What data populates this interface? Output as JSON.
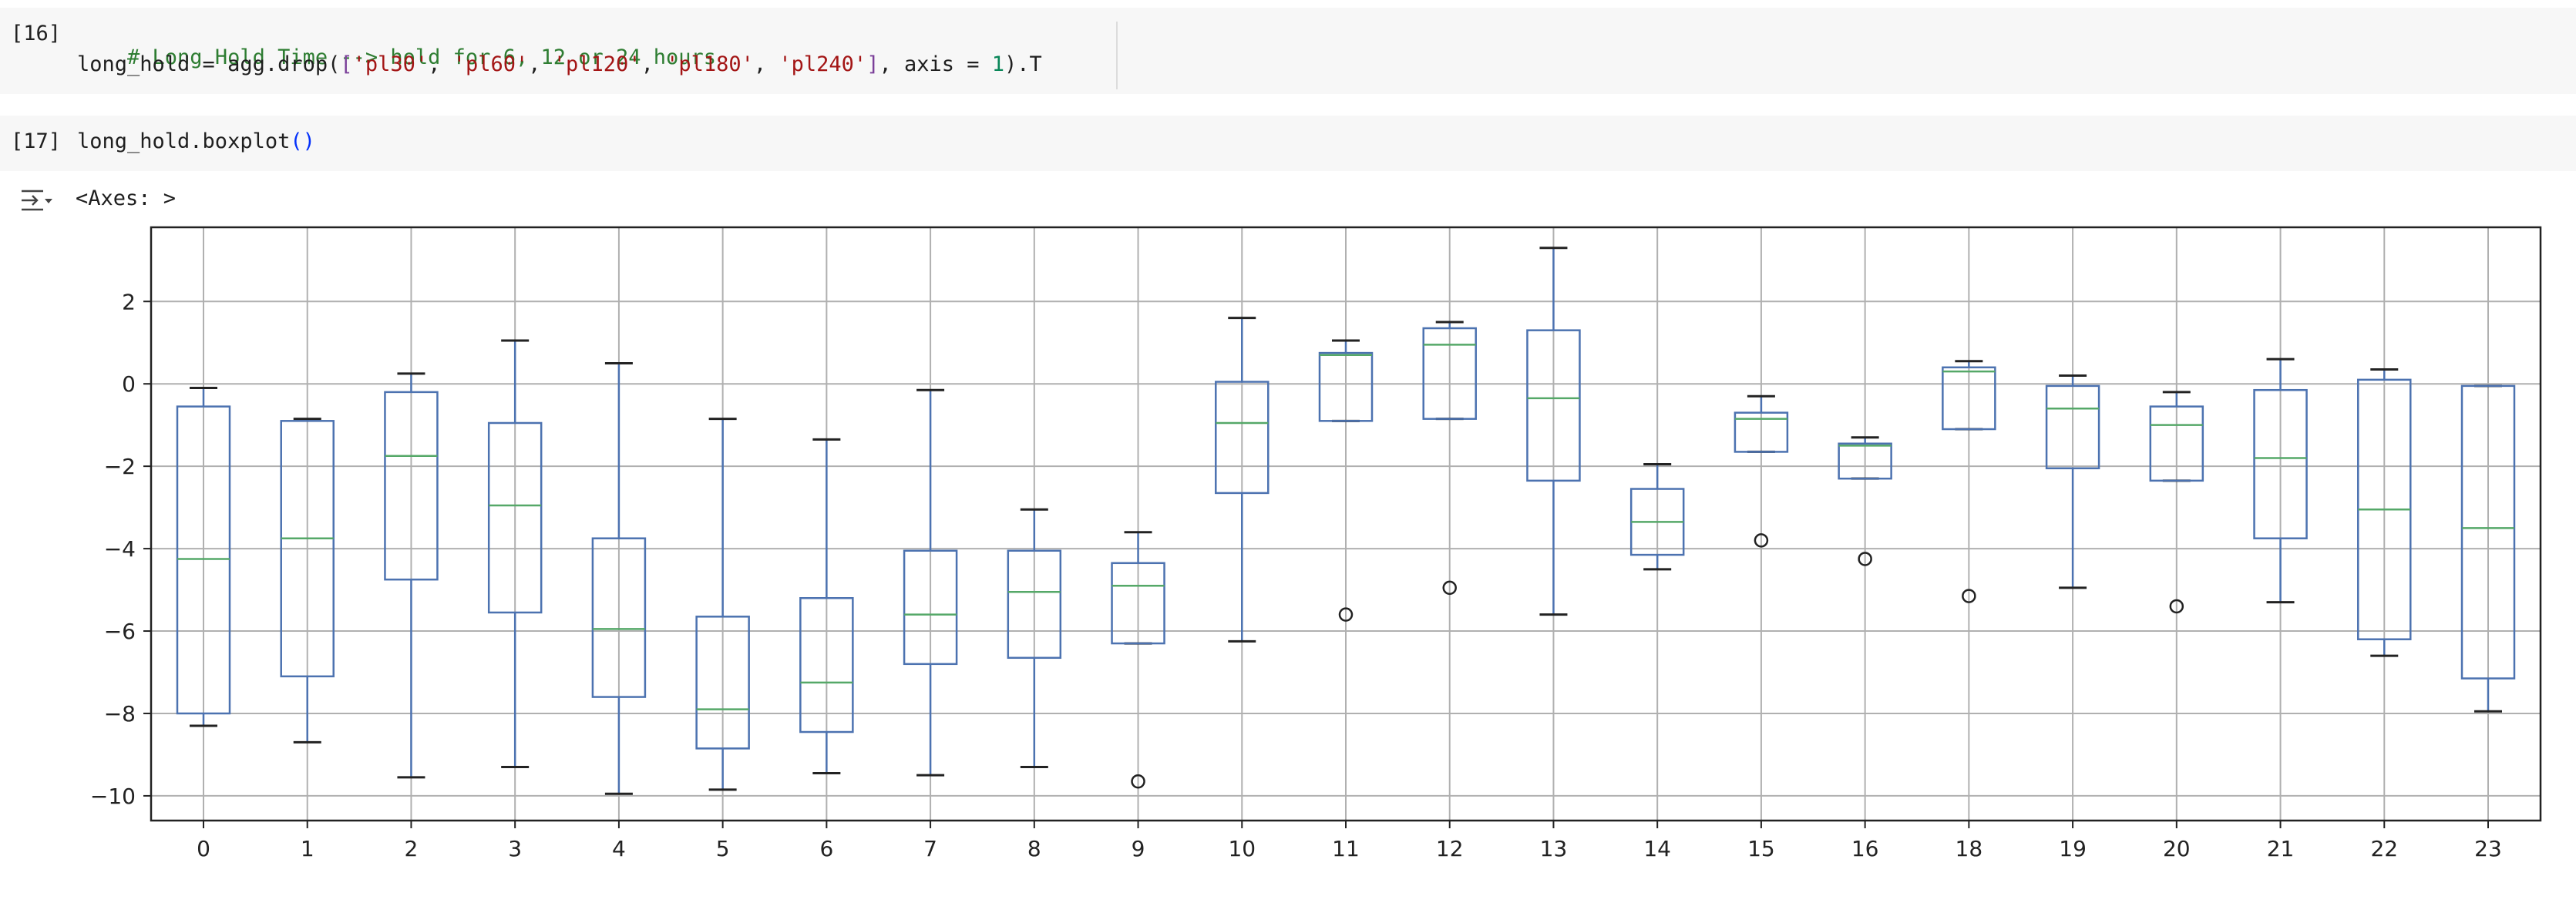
{
  "cells": [
    {
      "prompt": "[16]",
      "line1": {
        "comment": "# Long Hold Time --> hold for 6, 12 or 24 hours"
      },
      "line2": {
        "p1": "long_hold = agg.drop(",
        "open": "[",
        "s1": "'pl30'",
        "sep1": ", ",
        "s2": "'pl60'",
        "sep2": ", ",
        "s3": "'pl120'",
        "sep3": ", ",
        "s4": "'pl180'",
        "sep4": ", ",
        "s5": "'pl240'",
        "close": "]",
        "p2": ", axis = ",
        "num": "1",
        "p3": ").T"
      }
    },
    {
      "prompt": "[17]",
      "line1": {
        "p1": "long_hold.boxplot",
        "paren": "()"
      }
    }
  ],
  "output": {
    "text": "<Axes: >",
    "icon": "output-toggle-icon"
  },
  "colors": {
    "box": "#4c72b0",
    "median": "#55a868",
    "grid": "#b0b0b0",
    "flier": "#222222"
  },
  "chart_data": {
    "type": "box",
    "title": "",
    "xlabel": "",
    "ylabel": "",
    "grid": true,
    "ylim": [
      -10.6,
      3.8
    ],
    "yticks": [
      2,
      0,
      -2,
      -4,
      -6,
      -8,
      -10
    ],
    "categories": [
      "0",
      "1",
      "2",
      "3",
      "4",
      "5",
      "6",
      "7",
      "8",
      "9",
      "10",
      "11",
      "12",
      "13",
      "14",
      "15",
      "16",
      "18",
      "19",
      "20",
      "21",
      "22",
      "23"
    ],
    "boxes": [
      {
        "label": "0",
        "whislo": -8.3,
        "q1": -8.0,
        "med": -4.25,
        "q3": -0.55,
        "whishi": -0.1,
        "fliers": []
      },
      {
        "label": "1",
        "whislo": -8.7,
        "q1": -7.1,
        "med": -3.75,
        "q3": -0.9,
        "whishi": -0.85,
        "fliers": []
      },
      {
        "label": "2",
        "whislo": -9.55,
        "q1": -4.75,
        "med": -1.75,
        "q3": -0.2,
        "whishi": 0.25,
        "fliers": []
      },
      {
        "label": "3",
        "whislo": -9.3,
        "q1": -5.55,
        "med": -2.95,
        "q3": -0.95,
        "whishi": 1.05,
        "fliers": []
      },
      {
        "label": "4",
        "whislo": -9.95,
        "q1": -7.6,
        "med": -5.95,
        "q3": -3.75,
        "whishi": 0.5,
        "fliers": []
      },
      {
        "label": "5",
        "whislo": -9.85,
        "q1": -8.85,
        "med": -7.9,
        "q3": -5.65,
        "whishi": -0.85,
        "fliers": []
      },
      {
        "label": "6",
        "whislo": -9.45,
        "q1": -8.45,
        "med": -7.25,
        "q3": -5.2,
        "whishi": -1.35,
        "fliers": []
      },
      {
        "label": "7",
        "whislo": -9.5,
        "q1": -6.8,
        "med": -5.6,
        "q3": -4.05,
        "whishi": -0.15,
        "fliers": []
      },
      {
        "label": "8",
        "whislo": -9.3,
        "q1": -6.65,
        "med": -5.05,
        "q3": -4.05,
        "whishi": -3.05,
        "fliers": []
      },
      {
        "label": "9",
        "whislo": -6.3,
        "q1": -6.3,
        "med": -4.9,
        "q3": -4.35,
        "whishi": -3.6,
        "fliers": [
          -9.65
        ]
      },
      {
        "label": "10",
        "whislo": -6.25,
        "q1": -2.65,
        "med": -0.95,
        "q3": 0.05,
        "whishi": 1.6,
        "fliers": []
      },
      {
        "label": "11",
        "whislo": -0.9,
        "q1": -0.9,
        "med": 0.7,
        "q3": 0.75,
        "whishi": 1.05,
        "fliers": [
          -5.6
        ]
      },
      {
        "label": "12",
        "whislo": -0.85,
        "q1": -0.85,
        "med": 0.95,
        "q3": 1.35,
        "whishi": 1.5,
        "fliers": [
          -4.95
        ]
      },
      {
        "label": "13",
        "whislo": -5.6,
        "q1": -2.35,
        "med": -0.35,
        "q3": 1.3,
        "whishi": 3.3,
        "fliers": []
      },
      {
        "label": "14",
        "whislo": -4.5,
        "q1": -4.15,
        "med": -3.35,
        "q3": -2.55,
        "whishi": -1.95,
        "fliers": []
      },
      {
        "label": "15",
        "whislo": -1.65,
        "q1": -1.65,
        "med": -0.85,
        "q3": -0.7,
        "whishi": -0.3,
        "fliers": [
          -3.8
        ]
      },
      {
        "label": "16",
        "whislo": -2.3,
        "q1": -2.3,
        "med": -1.5,
        "q3": -1.45,
        "whishi": -1.3,
        "fliers": [
          -4.25
        ]
      },
      {
        "label": "18",
        "whislo": -1.1,
        "q1": -1.1,
        "med": 0.3,
        "q3": 0.4,
        "whishi": 0.55,
        "fliers": [
          -5.15
        ]
      },
      {
        "label": "19",
        "whislo": -4.95,
        "q1": -2.05,
        "med": -0.6,
        "q3": -0.05,
        "whishi": 0.2,
        "fliers": []
      },
      {
        "label": "20",
        "whislo": -2.35,
        "q1": -2.35,
        "med": -1.0,
        "q3": -0.55,
        "whishi": -0.2,
        "fliers": [
          -5.4
        ]
      },
      {
        "label": "21",
        "whislo": -5.3,
        "q1": -3.75,
        "med": -1.8,
        "q3": -0.15,
        "whishi": 0.6,
        "fliers": []
      },
      {
        "label": "22",
        "whislo": -6.6,
        "q1": -6.2,
        "med": -3.05,
        "q3": 0.1,
        "whishi": 0.35,
        "fliers": []
      },
      {
        "label": "23",
        "whislo": -7.95,
        "q1": -7.15,
        "med": -3.5,
        "q3": -0.05,
        "whishi": -0.05,
        "fliers": []
      }
    ]
  }
}
